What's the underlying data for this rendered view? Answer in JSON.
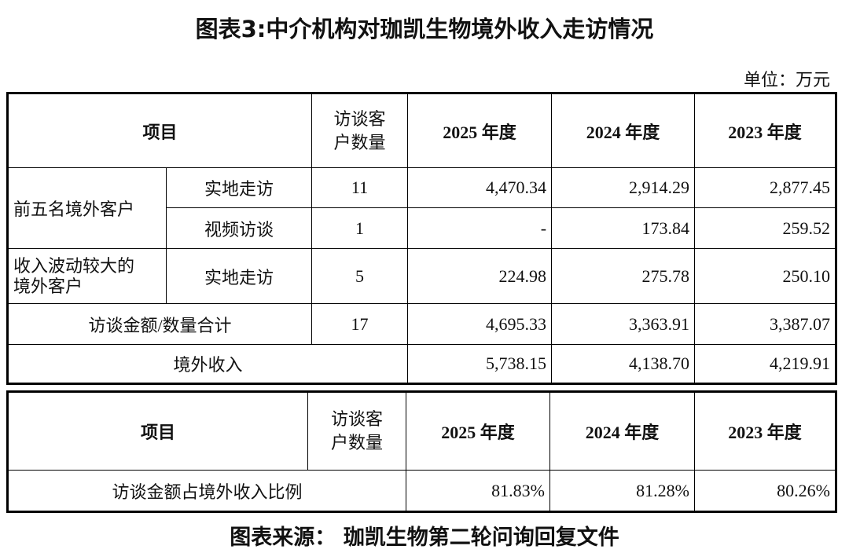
{
  "title": "图表3:中介机构对珈凯生物境外收入走访情况",
  "unit": "单位：万元",
  "table1": {
    "header": [
      "项目",
      "访谈客户数量",
      "2025 年度",
      "2024 年度",
      "2023 年度"
    ],
    "rows": [
      [
        "前五名境外客户",
        "实地走访",
        "11",
        "4,470.34",
        "2,914.29",
        "2,877.45"
      ],
      [
        "视频访谈",
        "1",
        "-",
        "173.84",
        "259.52"
      ],
      [
        "收入波动较大的境外客户",
        "实地走访",
        "5",
        "224.98",
        "275.78",
        "250.10"
      ],
      [
        "访谈金额/数量合计",
        "17",
        "4,695.33",
        "3,363.91",
        "3,387.07"
      ],
      [
        "境外收入",
        "5,738.15",
        "4,138.70",
        "4,219.91"
      ]
    ]
  },
  "table2": {
    "header": [
      "项目",
      "访谈客户数量",
      "2025 年度",
      "2024 年度",
      "2023 年度"
    ],
    "rows": [
      [
        "访谈金额占境外收入比例",
        "81.83%",
        "81.28%",
        "80.26%"
      ]
    ]
  },
  "source": "图表来源： 珈凯生物第二轮问询回复文件"
}
